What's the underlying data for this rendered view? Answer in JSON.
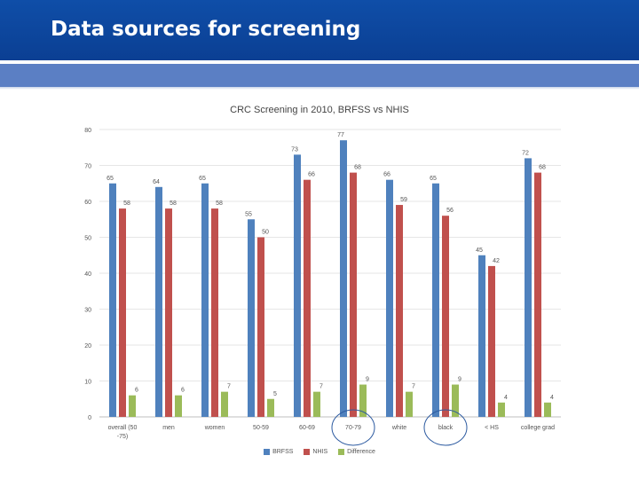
{
  "slide": {
    "title": "Data sources for screening"
  },
  "colors": {
    "header": "#0d47a1",
    "band": "#5b7fc4",
    "brfss": "#4f81bd",
    "nhis": "#c0504d",
    "difference": "#9bbb59",
    "circle": "#2c5aa0"
  },
  "chart_data": {
    "type": "bar",
    "title": "CRC Screening in 2010, BRFSS vs NHIS",
    "xlabel": "",
    "ylabel": "",
    "ylim": [
      0,
      80
    ],
    "yticks": [
      "0",
      "10",
      "20",
      "30",
      "40",
      "50",
      "60",
      "70",
      "80"
    ],
    "categories": [
      "overall (50-75)",
      "men",
      "women",
      "50-59",
      "60-69",
      "70-79",
      "white",
      "black",
      "< HS",
      "college grad"
    ],
    "series": [
      {
        "name": "BRFSS",
        "values": [
          65,
          64,
          65,
          55,
          73,
          77,
          66,
          65,
          45,
          72
        ]
      },
      {
        "name": "NHIS",
        "values": [
          58,
          58,
          58,
          50,
          66,
          68,
          59,
          56,
          42,
          68
        ]
      },
      {
        "name": "Difference",
        "values": [
          6,
          6,
          7,
          5,
          7,
          9,
          7,
          9,
          4,
          4
        ]
      }
    ],
    "data_labels": [
      [
        "65",
        "64",
        "65",
        "55",
        "73",
        "77",
        "66",
        "65",
        "45",
        "72"
      ],
      [
        "58",
        "58",
        "58",
        "50",
        "66",
        "68",
        "59",
        "56",
        "42",
        "68"
      ],
      [
        "6",
        "6",
        "7",
        "5",
        "7",
        "9",
        "7",
        "9",
        "4",
        "4"
      ]
    ],
    "highlighted_categories": [
      "70-79",
      "black"
    ],
    "grid": true,
    "legend_position": "bottom"
  }
}
